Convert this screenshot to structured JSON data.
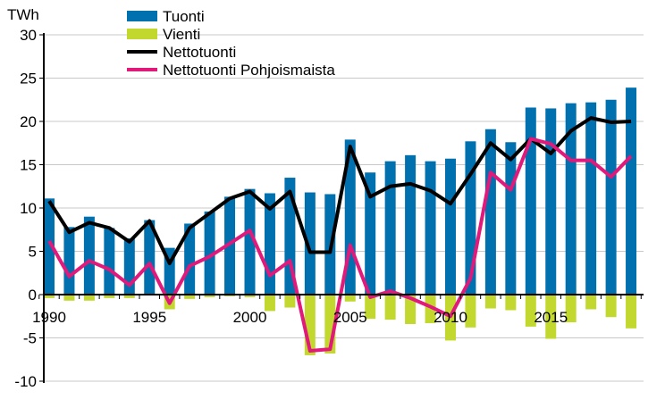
{
  "chart_data": {
    "type": "bar",
    "ylabel": "TWh",
    "ylim": [
      -10,
      30
    ],
    "yticks": [
      -10,
      -5,
      0,
      5,
      10,
      15,
      20,
      25,
      30
    ],
    "xtick_labels": [
      "1990",
      "1995",
      "2000",
      "2005",
      "2010",
      "2015"
    ],
    "grid": "horizontal",
    "legend_position": "top",
    "categories": [
      1990,
      1991,
      1992,
      1993,
      1994,
      1995,
      1996,
      1997,
      1998,
      1999,
      2000,
      2001,
      2002,
      2003,
      2004,
      2005,
      2006,
      2007,
      2008,
      2009,
      2010,
      2011,
      2012,
      2013,
      2014,
      2015,
      2016,
      2017,
      2018,
      2019
    ],
    "series": [
      {
        "name": "Tuonti",
        "kind": "bar",
        "color": "#0070ae",
        "values": [
          11.1,
          7.8,
          9.0,
          7.7,
          6.5,
          8.6,
          5.4,
          8.2,
          9.6,
          11.3,
          12.2,
          11.7,
          13.5,
          11.8,
          11.6,
          17.9,
          14.1,
          15.4,
          16.1,
          15.4,
          15.7,
          17.7,
          19.1,
          17.6,
          21.6,
          21.5,
          22.1,
          22.2,
          22.5,
          23.9
        ]
      },
      {
        "name": "Vienti",
        "kind": "bar",
        "color": "#c3d82e",
        "values": [
          -0.4,
          -0.7,
          -0.7,
          -0.4,
          -0.4,
          -0.1,
          -1.7,
          -0.5,
          -0.3,
          -0.2,
          -0.3,
          -1.9,
          -1.5,
          -7.0,
          -6.8,
          -0.8,
          -2.8,
          -2.9,
          -3.4,
          -3.3,
          -5.3,
          -3.8,
          -1.6,
          -1.8,
          -3.7,
          -5.1,
          -3.2,
          -1.7,
          -2.6,
          -3.9
        ]
      },
      {
        "name": "Nettotuonti",
        "kind": "line",
        "color": "#000000",
        "values": [
          10.8,
          7.2,
          8.3,
          7.7,
          6.1,
          8.5,
          3.6,
          7.7,
          9.4,
          11.1,
          11.9,
          9.9,
          11.9,
          4.9,
          4.9,
          17.1,
          11.3,
          12.5,
          12.8,
          12.0,
          10.5,
          13.9,
          17.5,
          15.6,
          18.0,
          16.3,
          18.9,
          20.4,
          19.9,
          20.0
        ]
      },
      {
        "name": "Nettotuonti Pohjoismaista",
        "kind": "line",
        "color": "#e0197a",
        "values": [
          6.2,
          2.1,
          3.9,
          2.9,
          1.1,
          3.6,
          -1.0,
          3.3,
          4.4,
          5.9,
          7.4,
          2.2,
          3.9,
          -6.5,
          -6.3,
          5.7,
          -0.3,
          0.4,
          -0.4,
          -1.4,
          -2.5,
          1.9,
          14.1,
          12.1,
          18.0,
          17.4,
          15.5,
          15.5,
          13.6,
          16.0
        ]
      }
    ]
  }
}
